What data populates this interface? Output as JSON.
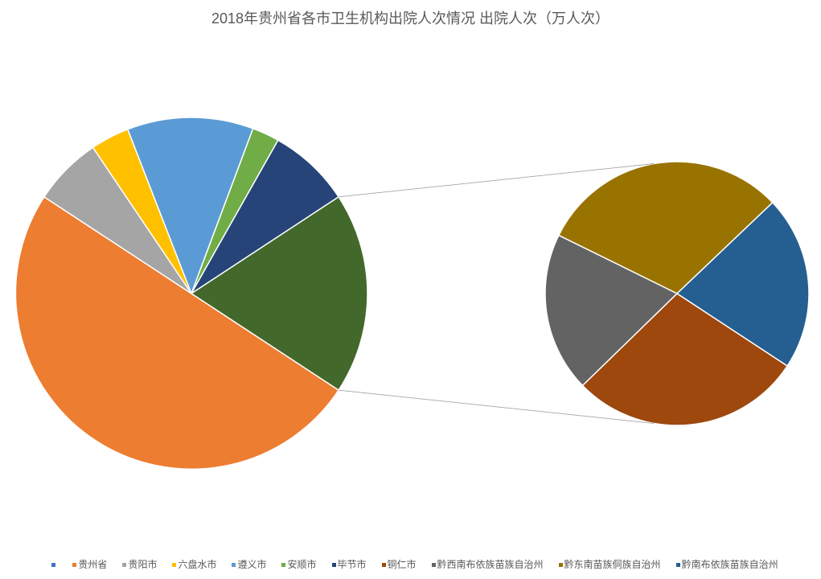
{
  "chart_data": {
    "type": "pie",
    "subtype": "pie-of-pie",
    "title": "2018年贵州省各市卫生机构出院人次情况 出院人次（万人次）",
    "categories": [
      "",
      "贵州省",
      "贵阳市",
      "六盘水市",
      "遵义市",
      "安顺市",
      "毕节市",
      "铜仁市",
      "黔西南布依族苗族自治州",
      "黔东南苗族侗族自治州",
      "黔南布依族苗族自治州"
    ],
    "values": [
      null,
      760,
      96,
      54,
      176,
      38,
      115,
      80,
      55,
      86,
      60
    ],
    "values_in_second_plot": 4,
    "legend": "bottom",
    "colors": [
      "#4472C4",
      "#ED7D31",
      "#A5A5A5",
      "#FFC000",
      "#5B9BD5",
      "#70AD47",
      "#264478",
      "#9E480E",
      "#636363",
      "#997300",
      "#255E91"
    ],
    "other_color": "#43682B"
  },
  "style": {
    "text_color": "#595959",
    "slice_border_color": "#FFFFFF",
    "series_line_color": "#A6A6A6"
  }
}
